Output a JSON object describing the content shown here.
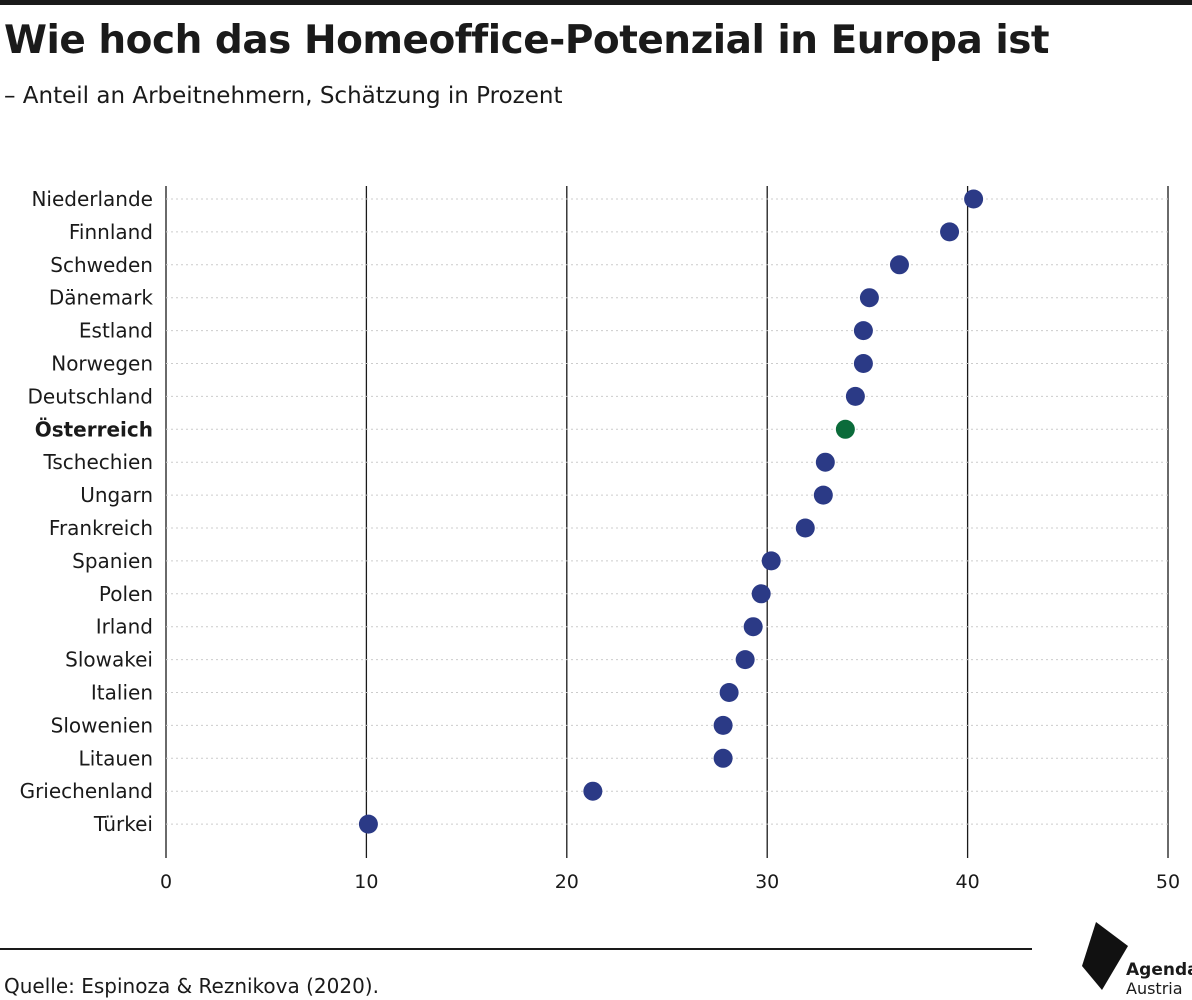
{
  "header": {
    "title": "Wie hoch das Homeoffice-Potenzial in Europa ist",
    "subtitle": "– Anteil an Arbeitnehmern, Schätzung in Prozent"
  },
  "footer": {
    "source": "Quelle: Espinoza & Reznikova (2020).",
    "logo_line1": "Agenda",
    "logo_line2": "Austria"
  },
  "colors": {
    "default_dot": "#2b3a86",
    "highlight_dot": "#0b6b3a",
    "gridline": "#1a1a1a",
    "row_guide": "#cccccc"
  },
  "chart_data": {
    "type": "scatter",
    "orientation": "horizontal-dot-plot",
    "xlim": [
      0,
      50
    ],
    "x_ticks": [
      0,
      10,
      20,
      30,
      40,
      50
    ],
    "grid": true,
    "categories": [
      "Niederlande",
      "Finnland",
      "Schweden",
      "Dänemark",
      "Estland",
      "Norwegen",
      "Deutschland",
      "Österreich",
      "Tschechien",
      "Ungarn",
      "Frankreich",
      "Spanien",
      "Polen",
      "Irland",
      "Slowakei",
      "Italien",
      "Slowenien",
      "Litauen",
      "Griechenland",
      "Türkei"
    ],
    "values": [
      40.3,
      39.1,
      36.6,
      35.1,
      34.8,
      34.8,
      34.4,
      33.9,
      32.9,
      32.8,
      31.9,
      30.2,
      29.7,
      29.3,
      28.9,
      28.1,
      27.8,
      27.8,
      21.3,
      10.1
    ],
    "highlight": "Österreich"
  }
}
